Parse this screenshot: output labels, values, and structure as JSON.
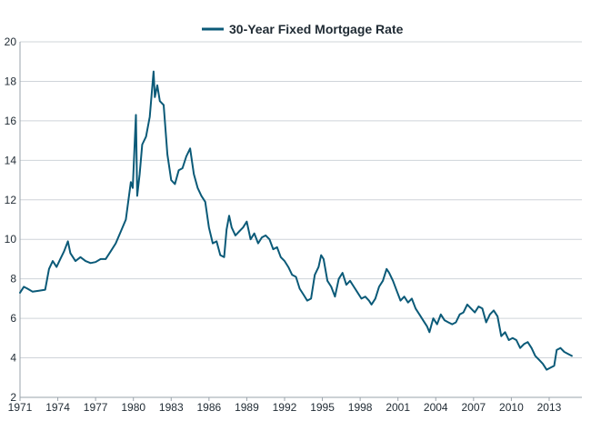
{
  "chart_data": {
    "type": "line",
    "title": "",
    "xlabel": "",
    "ylabel": "",
    "legend": {
      "position": "top-center",
      "entries": [
        "30-Year Fixed Mortgage Rate"
      ]
    },
    "grid": "horizontal",
    "colors": {
      "series": "#0b5a78",
      "grid": "#cfd4d9",
      "axis": "#9aa3ab",
      "text": "#1f2a33"
    },
    "xlim": [
      1971,
      2015.6
    ],
    "ylim": [
      2,
      20
    ],
    "x_ticks": [
      1971,
      1974,
      1977,
      1980,
      1983,
      1986,
      1989,
      1992,
      1995,
      1998,
      2001,
      2004,
      2007,
      2010,
      2013
    ],
    "x_tick_labels": [
      "1971",
      "1974",
      "1977",
      "1980",
      "1983",
      "1986",
      "1989",
      "1992",
      "1995",
      "1998",
      "2001",
      "2004",
      "2007",
      "2010",
      "2013"
    ],
    "y_ticks": [
      2,
      4,
      6,
      8,
      10,
      12,
      14,
      16,
      18,
      20
    ],
    "y_tick_labels": [
      "2",
      "4",
      "6",
      "8",
      "10",
      "12",
      "14",
      "16",
      "18",
      "20"
    ],
    "series": [
      {
        "name": "30-Year Fixed Mortgage Rate",
        "x": [
          1971.0,
          1971.3,
          1971.6,
          1972.0,
          1972.5,
          1973.0,
          1973.3,
          1973.6,
          1973.9,
          1974.2,
          1974.5,
          1974.8,
          1975.0,
          1975.4,
          1975.8,
          1976.2,
          1976.6,
          1977.0,
          1977.4,
          1977.8,
          1978.2,
          1978.6,
          1979.0,
          1979.4,
          1979.8,
          1979.95,
          1980.2,
          1980.3,
          1980.5,
          1980.7,
          1981.0,
          1981.3,
          1981.6,
          1981.7,
          1981.9,
          1982.1,
          1982.4,
          1982.7,
          1983.0,
          1983.3,
          1983.6,
          1983.9,
          1984.2,
          1984.5,
          1984.8,
          1985.1,
          1985.4,
          1985.7,
          1986.0,
          1986.3,
          1986.6,
          1986.9,
          1987.2,
          1987.4,
          1987.6,
          1987.8,
          1988.1,
          1988.4,
          1988.7,
          1989.0,
          1989.3,
          1989.6,
          1989.9,
          1990.2,
          1990.5,
          1990.8,
          1991.1,
          1991.4,
          1991.7,
          1992.0,
          1992.3,
          1992.6,
          1992.9,
          1993.2,
          1993.5,
          1993.8,
          1994.1,
          1994.4,
          1994.7,
          1994.9,
          1995.1,
          1995.4,
          1995.7,
          1996.0,
          1996.3,
          1996.6,
          1996.9,
          1997.2,
          1997.5,
          1997.8,
          1998.1,
          1998.4,
          1998.7,
          1998.9,
          1999.2,
          1999.5,
          1999.8,
          2000.1,
          2000.3,
          2000.6,
          2000.9,
          2001.2,
          2001.5,
          2001.8,
          2002.1,
          2002.4,
          2002.7,
          2003.0,
          2003.3,
          2003.5,
          2003.8,
          2004.1,
          2004.4,
          2004.7,
          2005.0,
          2005.3,
          2005.6,
          2005.9,
          2006.2,
          2006.5,
          2006.8,
          2007.1,
          2007.4,
          2007.7,
          2008.0,
          2008.3,
          2008.6,
          2008.9,
          2009.2,
          2009.5,
          2009.8,
          2010.1,
          2010.4,
          2010.7,
          2011.0,
          2011.3,
          2011.6,
          2011.9,
          2012.2,
          2012.5,
          2012.8,
          2013.1,
          2013.4,
          2013.6,
          2013.9,
          2014.2,
          2014.5,
          2014.8
        ],
        "values": [
          7.3,
          7.6,
          7.5,
          7.35,
          7.4,
          7.45,
          8.5,
          8.9,
          8.6,
          9.0,
          9.4,
          9.9,
          9.3,
          8.9,
          9.1,
          8.9,
          8.8,
          8.85,
          9.0,
          9.0,
          9.4,
          9.8,
          10.4,
          11.0,
          12.9,
          12.6,
          16.3,
          12.2,
          13.3,
          14.8,
          15.2,
          16.2,
          18.5,
          17.2,
          17.8,
          17.0,
          16.8,
          14.3,
          13.0,
          12.8,
          13.5,
          13.6,
          14.2,
          14.6,
          13.3,
          12.6,
          12.2,
          11.9,
          10.6,
          9.8,
          9.9,
          9.2,
          9.1,
          10.5,
          11.2,
          10.6,
          10.2,
          10.4,
          10.6,
          10.9,
          10.0,
          10.3,
          9.8,
          10.1,
          10.2,
          10.0,
          9.5,
          9.6,
          9.1,
          8.9,
          8.6,
          8.2,
          8.1,
          7.5,
          7.2,
          6.9,
          7.0,
          8.2,
          8.6,
          9.2,
          9.0,
          7.9,
          7.6,
          7.1,
          8.0,
          8.3,
          7.7,
          7.9,
          7.6,
          7.3,
          7.0,
          7.1,
          6.9,
          6.7,
          7.0,
          7.6,
          7.9,
          8.5,
          8.3,
          7.9,
          7.4,
          6.9,
          7.1,
          6.8,
          7.0,
          6.5,
          6.2,
          5.9,
          5.6,
          5.3,
          6.0,
          5.7,
          6.2,
          5.9,
          5.8,
          5.7,
          5.8,
          6.2,
          6.3,
          6.7,
          6.5,
          6.3,
          6.6,
          6.5,
          5.8,
          6.2,
          6.4,
          6.1,
          5.1,
          5.3,
          4.9,
          5.0,
          4.9,
          4.5,
          4.7,
          4.8,
          4.5,
          4.1,
          3.9,
          3.7,
          3.4,
          3.5,
          3.6,
          4.4,
          4.5,
          4.3,
          4.2,
          4.1
        ]
      }
    ]
  }
}
